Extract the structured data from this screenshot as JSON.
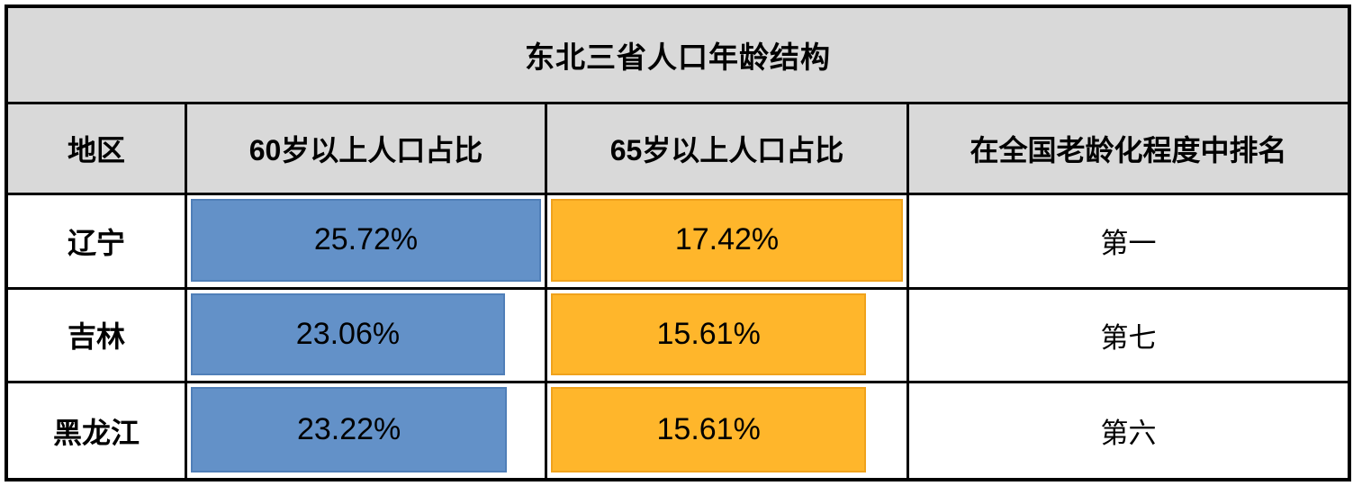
{
  "title": "东北三省人口年龄结构",
  "columns": [
    "地区",
    "60岁以上人口占比",
    "65岁以上人口占比",
    "在全国老龄化程度中排名"
  ],
  "colors": {
    "header_bg": "#d9d9d9",
    "grid_line": "#000000",
    "blue_bar": "#6391c8",
    "blue_bar_border": "#507fb8",
    "orange_bar": "#ffb62b",
    "orange_bar_border": "#f0a21c",
    "text": "#000000"
  },
  "rows": [
    {
      "region": "辽宁",
      "over60_label": "25.72%",
      "over60_bar_pct": 100,
      "over65_label": "17.42%",
      "over65_bar_pct": 100,
      "rank": "第一"
    },
    {
      "region": "吉林",
      "over60_label": "23.06%",
      "over60_bar_pct": 89.7,
      "over65_label": "15.61%",
      "over65_bar_pct": 89.6,
      "rank": "第七"
    },
    {
      "region": "黑龙江",
      "over60_label": "23.22%",
      "over60_bar_pct": 90.3,
      "over65_label": "15.61%",
      "over65_bar_pct": 89.6,
      "rank": "第六"
    }
  ],
  "chart_data": {
    "type": "table",
    "title": "东北三省人口年龄结构",
    "columns": [
      "地区",
      "60岁以上人口占比",
      "65岁以上人口占比",
      "在全国老龄化程度中排名"
    ],
    "categories": [
      "辽宁",
      "吉林",
      "黑龙江"
    ],
    "series": [
      {
        "name": "60岁以上人口占比",
        "values": [
          25.72,
          23.06,
          23.22
        ],
        "unit": "%",
        "bar_color": "#6391c8",
        "bar_scale": "length proportional to value, column max fills cell"
      },
      {
        "name": "65岁以上人口占比",
        "values": [
          17.42,
          15.61,
          15.61
        ],
        "unit": "%",
        "bar_color": "#ffb62b",
        "bar_scale": "length proportional to value, column max fills cell"
      }
    ],
    "ranks": {
      "name": "在全国老龄化程度中排名",
      "values": [
        "第一",
        "第七",
        "第六"
      ]
    },
    "layout": {
      "title_bg": "#d9d9d9",
      "header_bg": "#d9d9d9",
      "body_bg": "#ffffff",
      "grid": "black solid lines"
    }
  }
}
